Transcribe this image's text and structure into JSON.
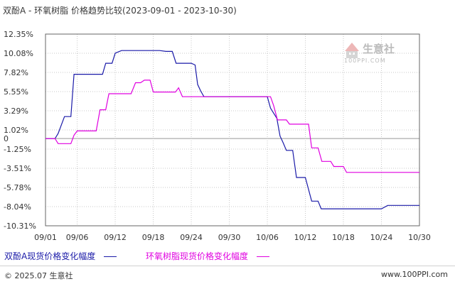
{
  "header": {
    "title": "双酚A - 环氧树脂 价格趋势比较(2023-09-01 - 2023-10-30)"
  },
  "legend": {
    "series1_label": "双酚A现货价格变化幅度",
    "series2_label": "环氧树脂现货价格变化幅度"
  },
  "watermark": {
    "name": "生意社",
    "url": "100PPI.COM"
  },
  "footer": {
    "left": "© 2025.07 生意社",
    "right": "www.100PPI.com"
  },
  "colors": {
    "series1": "#1a1aa8",
    "series2": "#e000e0",
    "grid": "#c8c8c8",
    "zero": "#999999",
    "frame": "#666666"
  },
  "chart_data": {
    "type": "line",
    "ylabel": "",
    "xlabel": "",
    "ylim": [
      -10.31,
      12.35
    ],
    "y_ticks": [
      {
        "value": 12.35,
        "label": "12.35%"
      },
      {
        "value": 10.08,
        "label": "10.08%"
      },
      {
        "value": 7.82,
        "label": "7.82%"
      },
      {
        "value": 5.55,
        "label": "5.55%"
      },
      {
        "value": 3.29,
        "label": "3.29%"
      },
      {
        "value": 1.02,
        "label": "1.02%"
      },
      {
        "value": 0,
        "label": "0"
      },
      {
        "value": -1.25,
        "label": "-1.25%"
      },
      {
        "value": -3.51,
        "label": "-3.51%"
      },
      {
        "value": -5.78,
        "label": "-5.78%"
      },
      {
        "value": -8.04,
        "label": "-8.04%"
      },
      {
        "value": -10.31,
        "label": "-10.31%"
      }
    ],
    "x_ticks": [
      {
        "day": 0,
        "label": "09/01"
      },
      {
        "day": 5,
        "label": "09/06"
      },
      {
        "day": 11,
        "label": "09/12"
      },
      {
        "day": 17,
        "label": "09/18"
      },
      {
        "day": 23,
        "label": "09/24"
      },
      {
        "day": 29,
        "label": "09/30"
      },
      {
        "day": 35,
        "label": "10/06"
      },
      {
        "day": 41,
        "label": "10/12"
      },
      {
        "day": 47,
        "label": "10/18"
      },
      {
        "day": 53,
        "label": "10/24"
      },
      {
        "day": 59,
        "label": "10/30"
      }
    ],
    "xlim": [
      0,
      59
    ],
    "series": [
      {
        "points": [
          [
            0,
            0
          ],
          [
            1,
            0
          ],
          [
            1.5,
            0
          ],
          [
            2,
            0.6
          ],
          [
            3,
            2.6
          ],
          [
            4,
            2.6
          ],
          [
            4.5,
            7.6
          ],
          [
            5,
            7.6
          ],
          [
            9,
            7.6
          ],
          [
            9.5,
            8.9
          ],
          [
            10.5,
            8.9
          ],
          [
            11,
            10.1
          ],
          [
            12,
            10.4
          ],
          [
            16,
            10.4
          ],
          [
            18,
            10.4
          ],
          [
            19,
            10.3
          ],
          [
            20,
            10.3
          ],
          [
            20.6,
            8.9
          ],
          [
            23,
            8.9
          ],
          [
            23.6,
            8.7
          ],
          [
            24,
            6.4
          ],
          [
            24.5,
            5.6
          ],
          [
            25,
            4.95
          ],
          [
            26,
            4.95
          ],
          [
            30,
            4.95
          ],
          [
            35,
            4.95
          ],
          [
            35.5,
            3.6
          ],
          [
            36.5,
            2.4
          ],
          [
            37,
            0.3
          ],
          [
            37.5,
            -0.5
          ],
          [
            38,
            -1.4
          ],
          [
            39,
            -1.4
          ],
          [
            39.6,
            -4.6
          ],
          [
            41,
            -4.6
          ],
          [
            42,
            -7.4
          ],
          [
            43,
            -7.4
          ],
          [
            43.5,
            -8.3
          ],
          [
            48,
            -8.3
          ],
          [
            50,
            -8.3
          ],
          [
            53,
            -8.3
          ],
          [
            54,
            -7.9
          ],
          [
            56,
            -7.9
          ],
          [
            59,
            -7.9
          ]
        ]
      },
      {
        "points": [
          [
            0,
            0
          ],
          [
            1,
            0
          ],
          [
            1.5,
            0
          ],
          [
            2,
            -0.6
          ],
          [
            4,
            -0.6
          ],
          [
            4.5,
            0.4
          ],
          [
            5,
            0.9
          ],
          [
            8,
            0.9
          ],
          [
            8.6,
            3.4
          ],
          [
            9.5,
            3.4
          ],
          [
            10,
            5.3
          ],
          [
            13.5,
            5.3
          ],
          [
            14.2,
            6.6
          ],
          [
            15,
            6.6
          ],
          [
            15.6,
            6.9
          ],
          [
            16.5,
            6.9
          ],
          [
            17,
            5.5
          ],
          [
            20.5,
            5.5
          ],
          [
            21,
            6.0
          ],
          [
            21.6,
            4.95
          ],
          [
            26,
            4.95
          ],
          [
            30,
            4.95
          ],
          [
            35.5,
            4.95
          ],
          [
            36,
            3.9
          ],
          [
            36.6,
            2.2
          ],
          [
            38,
            2.2
          ],
          [
            38.5,
            1.7
          ],
          [
            41.5,
            1.7
          ],
          [
            42,
            -1.1
          ],
          [
            43,
            -1.1
          ],
          [
            43.6,
            -2.7
          ],
          [
            45,
            -2.7
          ],
          [
            45.5,
            -3.3
          ],
          [
            47,
            -3.3
          ],
          [
            47.5,
            -4.0
          ],
          [
            59,
            -4.0
          ]
        ]
      }
    ]
  }
}
